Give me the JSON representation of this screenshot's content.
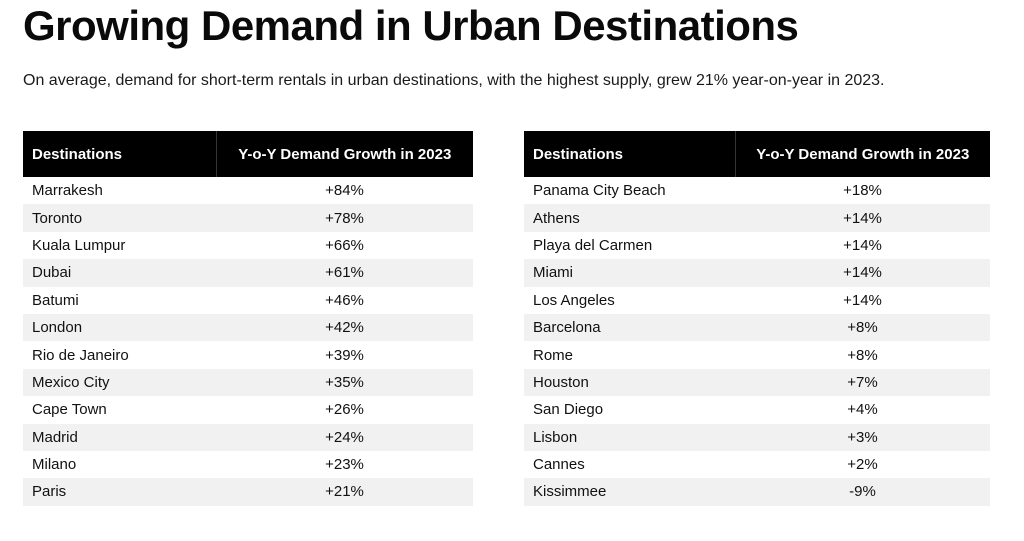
{
  "title": "Growing Demand in Urban Destinations",
  "subtitle": "On average, demand for short-term rentals in urban destinations, with the highest supply, grew 21% year-on-year in 2023.",
  "tables": [
    {
      "headers": [
        "Destinations",
        "Y-o-Y Demand Growth in 2023"
      ],
      "rows": [
        [
          "Marrakesh",
          "+84%"
        ],
        [
          "Toronto",
          "+78%"
        ],
        [
          "Kuala Lumpur",
          "+66%"
        ],
        [
          "Dubai",
          "+61%"
        ],
        [
          "Batumi",
          "+46%"
        ],
        [
          "London",
          "+42%"
        ],
        [
          "Rio de Janeiro",
          "+39%"
        ],
        [
          "Mexico City",
          "+35%"
        ],
        [
          "Cape Town",
          "+26%"
        ],
        [
          "Madrid",
          "+24%"
        ],
        [
          "Milano",
          "+23%"
        ],
        [
          "Paris",
          "+21%"
        ]
      ]
    },
    {
      "headers": [
        "Destinations",
        "Y-o-Y Demand Growth in 2023"
      ],
      "rows": [
        [
          "Panama City Beach",
          "+18%"
        ],
        [
          "Athens",
          "+14%"
        ],
        [
          "Playa del Carmen",
          "+14%"
        ],
        [
          "Miami",
          "+14%"
        ],
        [
          "Los Angeles",
          "+14%"
        ],
        [
          "Barcelona",
          "+8%"
        ],
        [
          "Rome",
          "+8%"
        ],
        [
          "Houston",
          "+7%"
        ],
        [
          "San Diego",
          "+4%"
        ],
        [
          "Lisbon",
          "+3%"
        ],
        [
          "Cannes",
          "+2%"
        ],
        [
          "Kissimmee",
          "-9%"
        ]
      ]
    }
  ],
  "colors": {
    "header_bg": "#000000",
    "header_text": "#ffffff",
    "stripe": "#f1f1f1"
  }
}
